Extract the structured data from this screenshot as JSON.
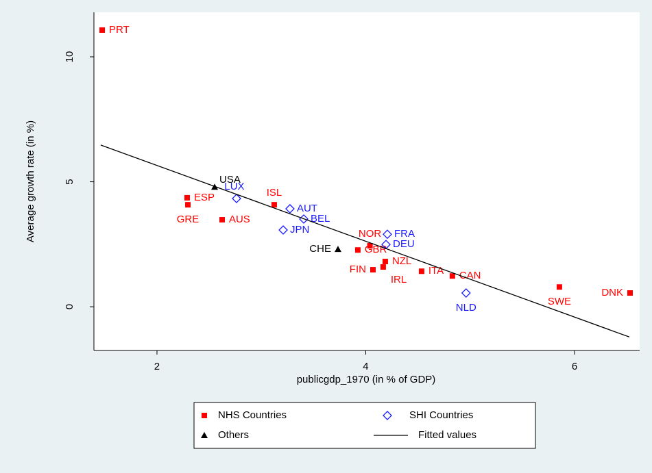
{
  "chart_data": {
    "type": "scatter",
    "xlabel": "publicgdp_1970 (in % of GDP)",
    "ylabel": "Average growth rate (in %)",
    "xlim": [
      1.396,
      6.624
    ],
    "ylim": [
      -1.75,
      11.78
    ],
    "xticks": [
      2,
      4,
      6
    ],
    "yticks": [
      0,
      5,
      10
    ],
    "series": [
      {
        "name": "NHS Countries",
        "color": "#ff0000",
        "marker": "square",
        "labels": [
          "PRT",
          "ESP",
          "GRE",
          "AUS",
          "ISL",
          "NOR",
          "GBR",
          "FIN",
          "NZL",
          "IRL",
          "ITA",
          "CAN",
          "SWE",
          "DNK"
        ],
        "x": [
          1.475,
          2.289,
          2.296,
          2.624,
          3.123,
          4.04,
          3.924,
          4.069,
          4.187,
          4.167,
          4.535,
          4.83,
          5.855,
          6.532
        ],
        "values": [
          11.07,
          4.36,
          4.08,
          3.48,
          4.08,
          2.44,
          2.27,
          1.48,
          1.81,
          1.59,
          1.42,
          1.23,
          0.79,
          0.55
        ]
      },
      {
        "name": "SHI Countries",
        "color": "#1a1aff",
        "marker": "diamond",
        "labels": [
          "LUX",
          "AUT",
          "BEL",
          "JPN",
          "FRA",
          "DEU",
          "NLD"
        ],
        "x": [
          2.762,
          3.274,
          3.406,
          3.209,
          4.207,
          4.194,
          4.961
        ],
        "values": [
          4.33,
          3.92,
          3.51,
          3.07,
          2.9,
          2.49,
          0.55
        ]
      },
      {
        "name": "Others",
        "color": "#000000",
        "marker": "triangle",
        "labels": [
          "USA",
          "CHE"
        ],
        "x": [
          2.552,
          3.734
        ],
        "values": [
          4.79,
          2.3
        ]
      },
      {
        "name": "Fitted values",
        "color": "#000000",
        "marker": "line",
        "x": [
          1.461,
          6.525
        ],
        "values": [
          6.47,
          -1.21
        ]
      }
    ]
  }
}
